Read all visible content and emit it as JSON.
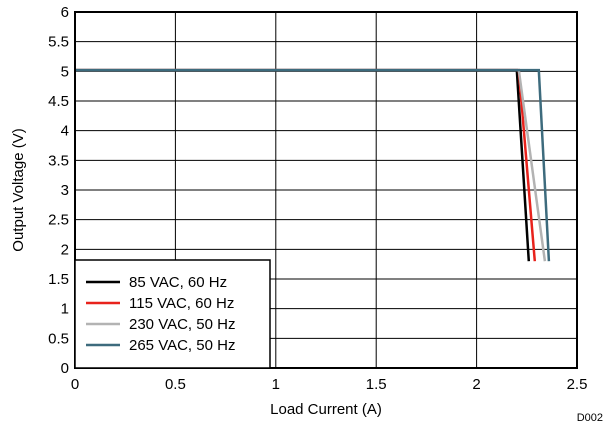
{
  "chart_data": {
    "type": "line",
    "title": "",
    "xlabel": "Load Current (A)",
    "ylabel": "Output Voltage (V)",
    "xlim": [
      0,
      2.5
    ],
    "ylim": [
      0,
      6
    ],
    "x_ticks": [
      "0",
      "0.5",
      "1",
      "1.5",
      "2",
      "2.5"
    ],
    "y_ticks": [
      "0",
      "0.5",
      "1",
      "1.5",
      "2",
      "2.5",
      "3",
      "3.5",
      "4",
      "4.5",
      "5",
      "5.5",
      "6"
    ],
    "grid": true,
    "legend_position": "bottom-left",
    "series": [
      {
        "name": "85 VAC, 60 Hz",
        "color": "#000000",
        "points": [
          [
            0,
            5.02
          ],
          [
            2.2,
            5.02
          ],
          [
            2.26,
            1.8
          ]
        ]
      },
      {
        "name": "115 VAC, 60 Hz",
        "color": "#e8221c",
        "points": [
          [
            0,
            5.02
          ],
          [
            2.21,
            5.02
          ],
          [
            2.29,
            1.8
          ]
        ]
      },
      {
        "name": "230 VAC, 50 Hz",
        "color": "#b3b3b3",
        "points": [
          [
            0,
            5.02
          ],
          [
            2.21,
            5.02
          ],
          [
            2.34,
            1.8
          ]
        ]
      },
      {
        "name": "265 VAC, 50 Hz",
        "color": "#3d6b7d",
        "points": [
          [
            0,
            5.02
          ],
          [
            2.31,
            5.02
          ],
          [
            2.36,
            1.8
          ]
        ]
      }
    ],
    "footnote": "D002"
  }
}
